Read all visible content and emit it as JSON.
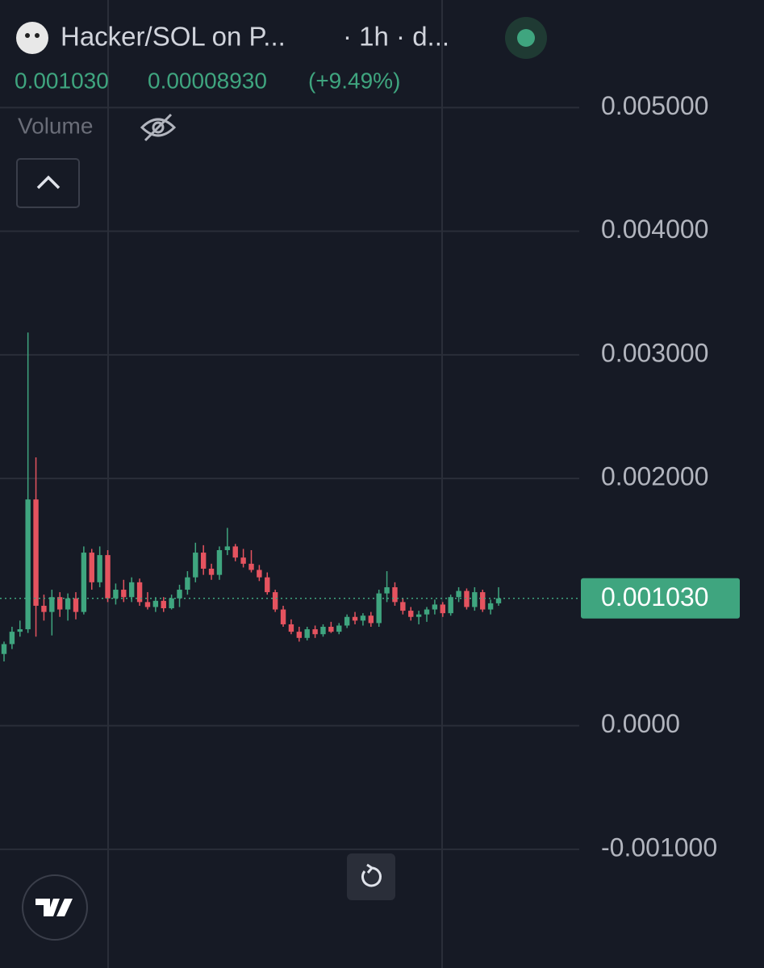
{
  "header": {
    "symbol": "Hacker/SOL on P...",
    "interval": "· 1h · d...",
    "last": "0.001030",
    "change": "0.00008930",
    "change_pct": "(+9.49%)",
    "indicator": "Volume"
  },
  "chart_data": {
    "type": "candlestick",
    "open": [
      0.00058,
      0.00066,
      0.00076,
      0.00078,
      0.00183,
      0.00097,
      0.00092,
      0.00104,
      0.00094,
      0.00103,
      0.00092,
      0.0014,
      0.00116,
      0.00138,
      0.00103,
      0.0011,
      0.00104,
      0.00116,
      0.001,
      0.00096,
      0.00101,
      0.00095,
      0.00103,
      0.0011,
      0.0012,
      0.0014,
      0.00127,
      0.00122,
      0.00142,
      0.00145,
      0.00136,
      0.00131,
      0.00126,
      0.0012,
      0.00108,
      0.00094,
      0.00082,
      0.00076,
      0.00071,
      0.00078,
      0.00074,
      0.0008,
      0.00076,
      0.00081,
      0.00088,
      0.00085,
      0.00089,
      0.00083,
      0.00107,
      0.00112,
      0.001,
      0.00093,
      0.00088,
      0.0009,
      0.00094,
      0.00098,
      0.00091,
      0.00104,
      0.00109,
      0.00096,
      0.00108,
      0.00094,
      0.00099
    ],
    "high": [
      0.00068,
      0.0008,
      0.00085,
      0.00318,
      0.00217,
      0.00106,
      0.0011,
      0.00108,
      0.00107,
      0.00108,
      0.00145,
      0.00143,
      0.00145,
      0.00142,
      0.00115,
      0.00118,
      0.0012,
      0.00119,
      0.00108,
      0.00104,
      0.00104,
      0.00106,
      0.00114,
      0.00125,
      0.00148,
      0.00146,
      0.00131,
      0.00145,
      0.0016,
      0.00147,
      0.00143,
      0.00142,
      0.0013,
      0.00124,
      0.0011,
      0.00097,
      0.00086,
      0.0008,
      0.0008,
      0.00081,
      0.00082,
      0.00084,
      0.00083,
      0.0009,
      0.00092,
      0.00091,
      0.00092,
      0.0011,
      0.00125,
      0.00116,
      0.00103,
      0.00096,
      0.00093,
      0.00096,
      0.00102,
      0.001,
      0.00106,
      0.00112,
      0.00111,
      0.00112,
      0.0011,
      0.00102,
      0.00112
    ],
    "low": [
      0.00052,
      0.00062,
      0.00072,
      0.00075,
      0.00072,
      0.00085,
      0.00073,
      0.00088,
      0.00085,
      0.00086,
      0.0009,
      0.0011,
      0.00112,
      0.001,
      0.00098,
      0.001,
      0.001,
      0.00097,
      0.00094,
      0.00092,
      0.00092,
      0.00094,
      0.00096,
      0.00106,
      0.00116,
      0.00122,
      0.00118,
      0.00118,
      0.00138,
      0.00133,
      0.00128,
      0.00124,
      0.00117,
      0.00106,
      0.00092,
      0.0008,
      0.00074,
      0.00068,
      0.00069,
      0.00071,
      0.00072,
      0.00075,
      0.00074,
      0.00079,
      0.00082,
      0.00081,
      0.0008,
      0.0008,
      0.001,
      0.00097,
      0.0009,
      0.00085,
      0.00082,
      0.00084,
      0.0009,
      0.00088,
      0.00089,
      0.001,
      0.00094,
      0.00093,
      0.00092,
      0.0009,
      0.00097
    ],
    "close": [
      0.00066,
      0.00076,
      0.00078,
      0.00183,
      0.00097,
      0.00092,
      0.00104,
      0.00094,
      0.00103,
      0.00092,
      0.0014,
      0.00116,
      0.00138,
      0.00103,
      0.0011,
      0.00104,
      0.00116,
      0.001,
      0.00096,
      0.00101,
      0.00095,
      0.00103,
      0.0011,
      0.0012,
      0.0014,
      0.00127,
      0.00122,
      0.00142,
      0.00145,
      0.00136,
      0.00131,
      0.00126,
      0.0012,
      0.00108,
      0.00094,
      0.00082,
      0.00076,
      0.00071,
      0.00078,
      0.00074,
      0.0008,
      0.00076,
      0.00081,
      0.00088,
      0.00085,
      0.00089,
      0.00083,
      0.00107,
      0.00112,
      0.001,
      0.00093,
      0.00088,
      0.0009,
      0.00094,
      0.00098,
      0.00091,
      0.00104,
      0.00109,
      0.00096,
      0.00108,
      0.00094,
      0.00099,
      0.00103
    ],
    "up_color": "#3fa57f",
    "down_color": "#e5535f",
    "ylim": [
      -0.00196,
      0.00587
    ],
    "yticks": [
      {
        "value": -0.001,
        "label": "-0.001000"
      },
      {
        "value": 0,
        "label": "0.0000"
      },
      {
        "value": 0.002,
        "label": "0.002000"
      },
      {
        "value": 0.003,
        "label": "0.003000"
      },
      {
        "value": 0.004,
        "label": "0.004000"
      },
      {
        "value": 0.005,
        "label": "0.005000"
      }
    ],
    "grid": true,
    "last_price": {
      "value": 0.00103,
      "label": "0.001030"
    }
  }
}
